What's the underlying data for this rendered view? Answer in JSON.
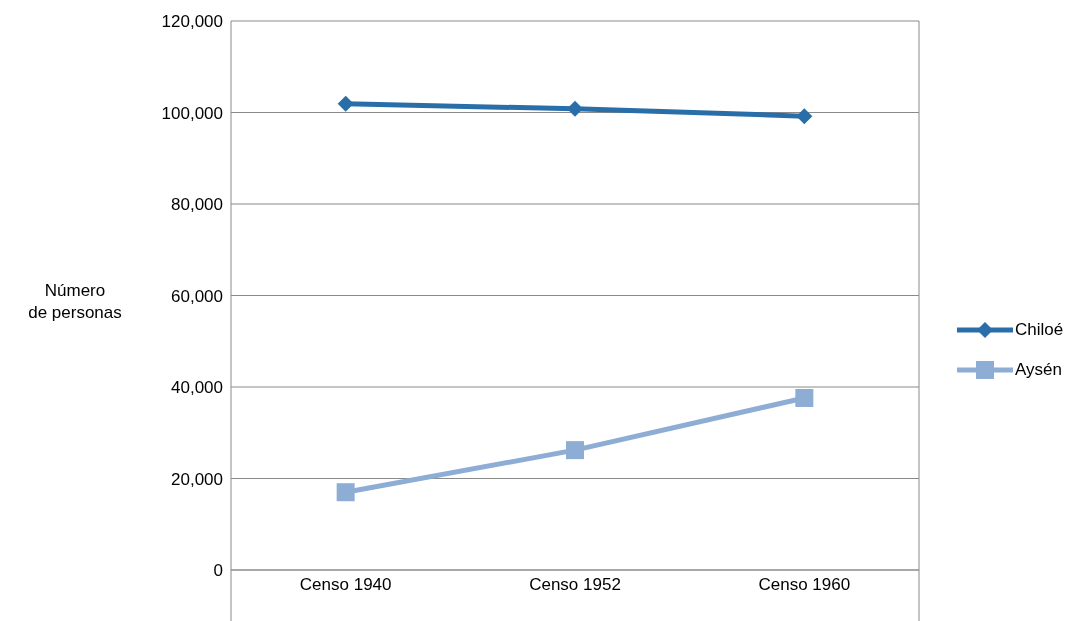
{
  "chart_data": {
    "type": "line",
    "ylabel": "Número\nde personas",
    "categories": [
      "Censo 1940",
      "Censo 1952",
      "Censo 1960"
    ],
    "series": [
      {
        "name": "Chiloé",
        "color": "#2a6ea9",
        "marker": "diamond",
        "values": [
          101900,
          100800,
          99200
        ]
      },
      {
        "name": "Aysén",
        "color": "#8eadd5",
        "marker": "square",
        "values": [
          17000,
          26200,
          37600
        ]
      }
    ],
    "ylim": [
      0,
      120000
    ],
    "yticks": [
      {
        "value": 0,
        "label": "0"
      },
      {
        "value": 20000,
        "label": "20,000"
      },
      {
        "value": 40000,
        "label": "40,000"
      },
      {
        "value": 60000,
        "label": "60,000"
      },
      {
        "value": 80000,
        "label": "80,000"
      },
      {
        "value": 100000,
        "label": "100,000"
      },
      {
        "value": 120000,
        "label": "120,000"
      }
    ],
    "grid": "y",
    "legend": "right"
  }
}
